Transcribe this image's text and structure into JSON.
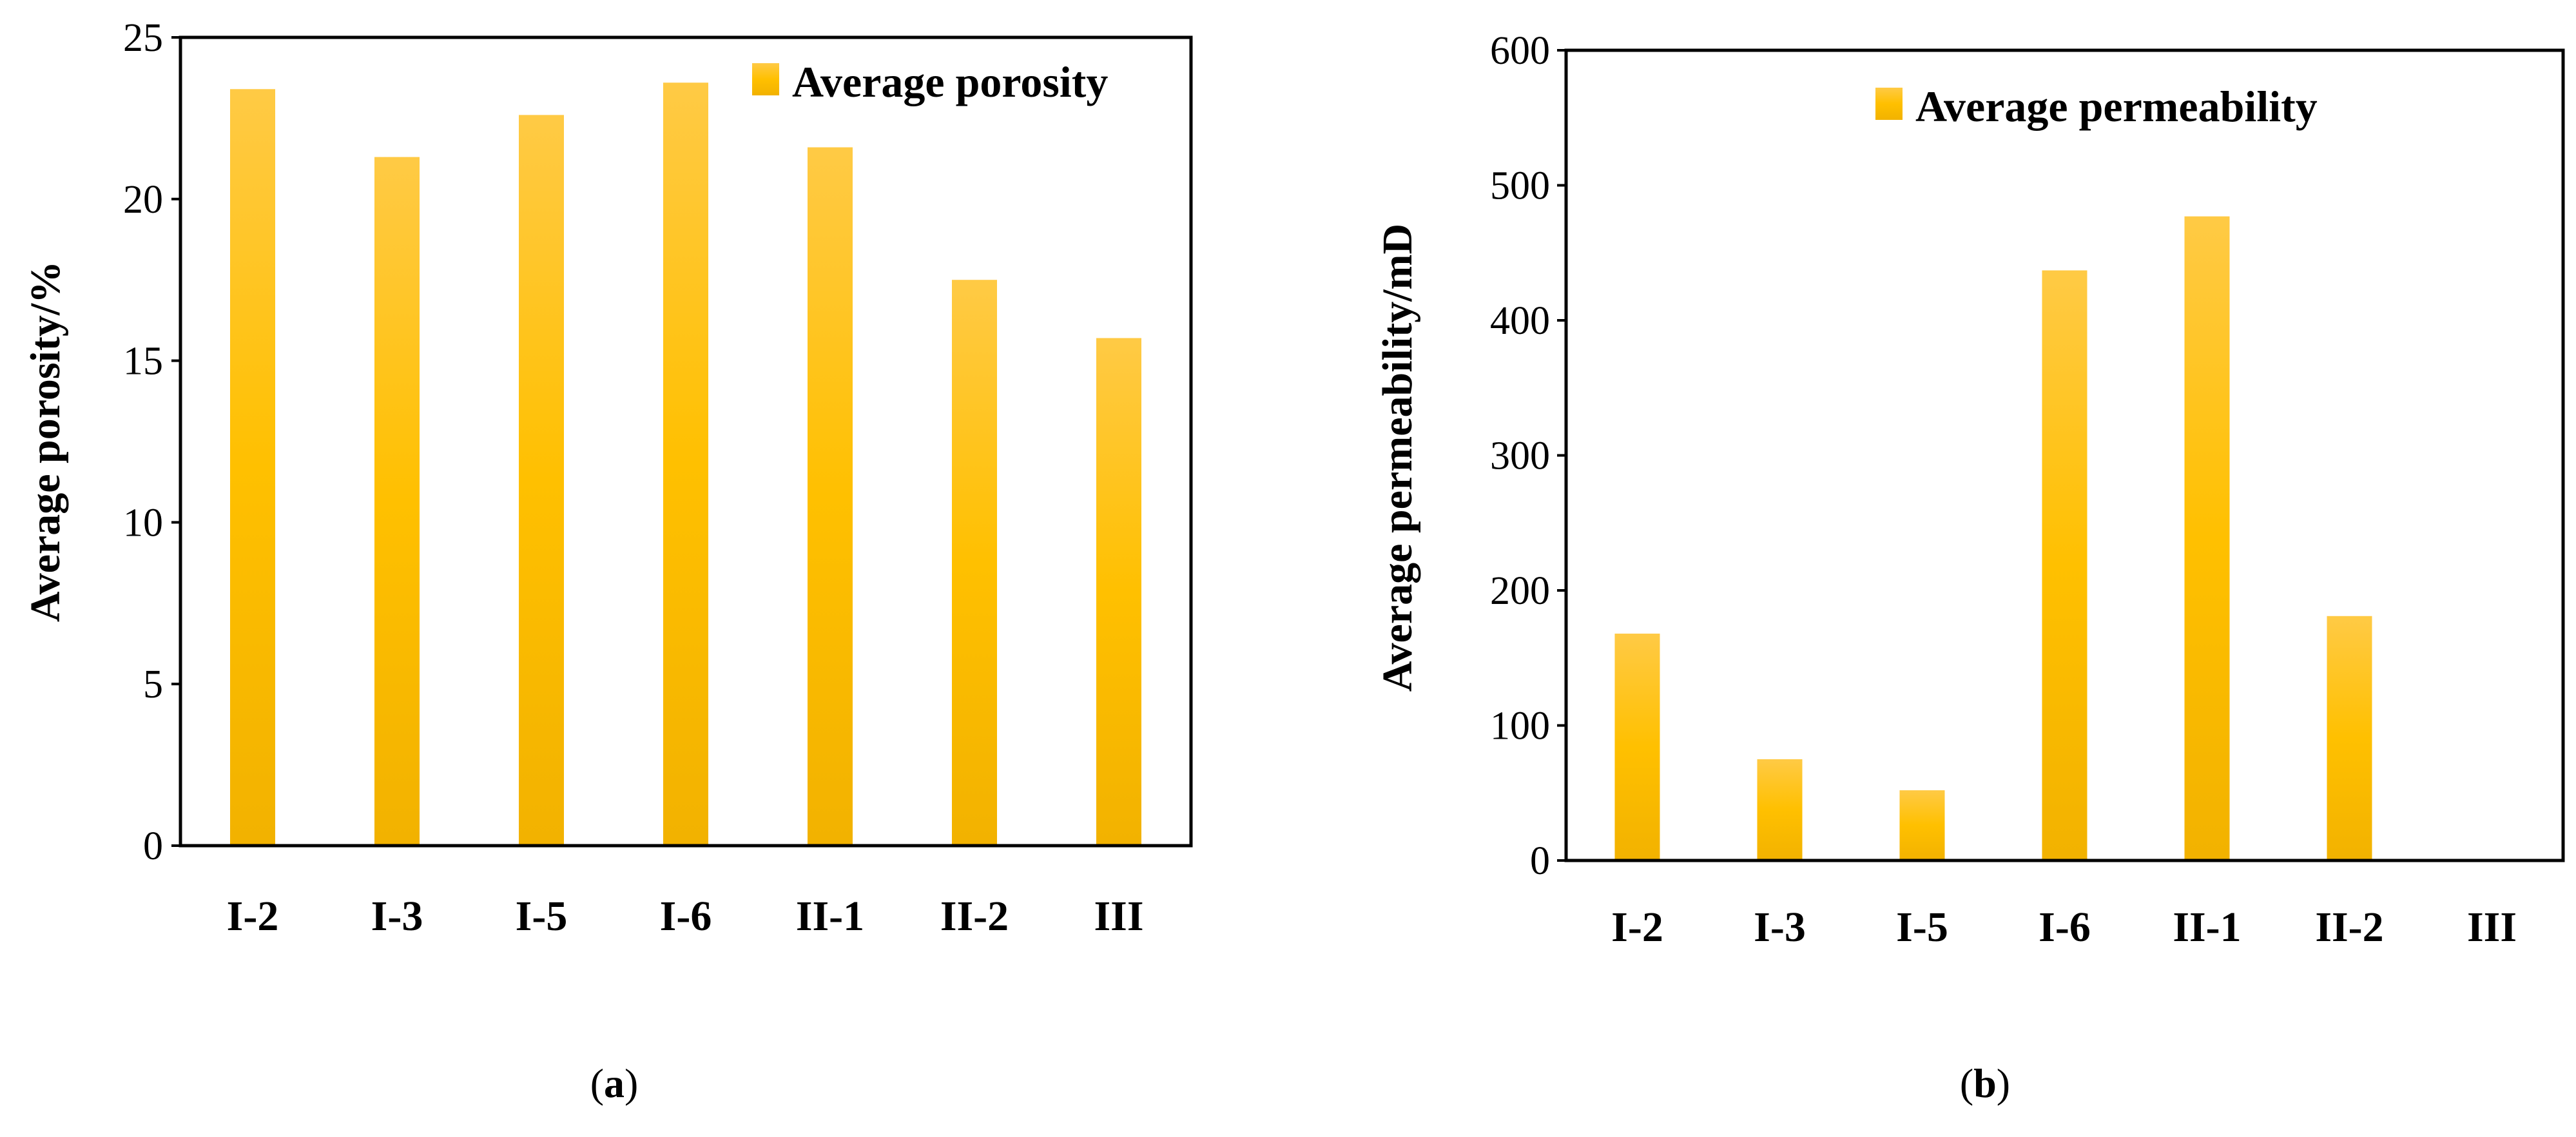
{
  "colors": {
    "bar_top": "#FFCA45",
    "bar_mid": "#FFC000",
    "bar_bottom": "#F2B200",
    "axis": "#000000"
  },
  "chart_data": [
    {
      "type": "bar",
      "panel_label": "a",
      "title": "",
      "xlabel": "",
      "ylabel": "Average porosity/%",
      "legend": "Average porosity",
      "legend_position": "top-right",
      "categories": [
        "I-2",
        "I-3",
        "I-5",
        "I-6",
        "II-1",
        "II-2",
        "III"
      ],
      "values": [
        23.4,
        21.3,
        22.6,
        23.6,
        21.6,
        17.5,
        15.7
      ],
      "ylim": [
        0,
        25
      ],
      "yticks": [
        0,
        5,
        10,
        15,
        20,
        25
      ],
      "grid": false
    },
    {
      "type": "bar",
      "panel_label": "b",
      "title": "",
      "xlabel": "",
      "ylabel": "Average permeability/mD",
      "legend": "Average permeability",
      "legend_position": "top-right",
      "categories": [
        "I-2",
        "I-3",
        "I-5",
        "I-6",
        "II-1",
        "II-2",
        "III"
      ],
      "values": [
        168,
        75,
        52,
        437,
        477,
        181,
        0
      ],
      "ylim": [
        0,
        600
      ],
      "yticks": [
        0,
        100,
        200,
        300,
        400,
        500,
        600
      ],
      "grid": false
    }
  ]
}
